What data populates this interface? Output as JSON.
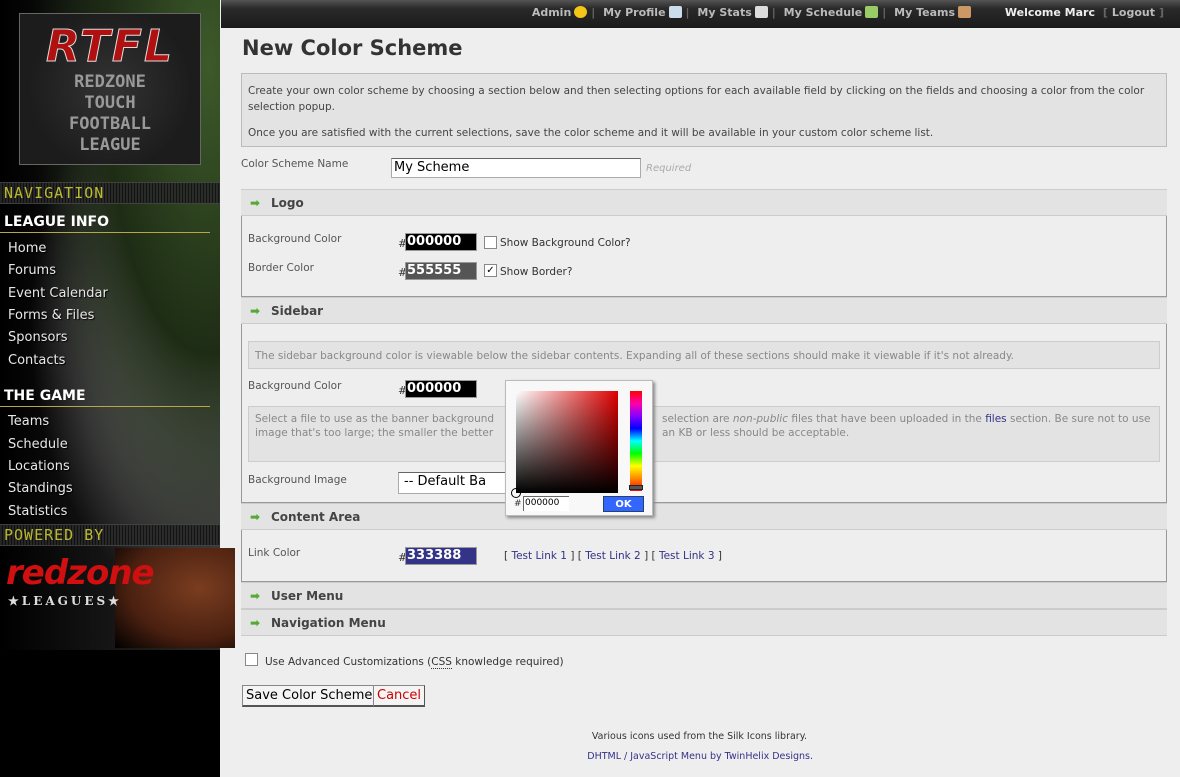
{
  "sidebar": {
    "logo": {
      "abbr": "RTFL",
      "lines": [
        "REDZONE",
        "TOUCH",
        "FOOTBALL",
        "LEAGUE"
      ]
    },
    "nav_banner": "NAVIGATION",
    "sections": [
      {
        "title": "LEAGUE INFO",
        "items": [
          "Home",
          "Forums",
          "Event Calendar",
          "Forms & Files",
          "Sponsors",
          "Contacts"
        ]
      },
      {
        "title": "THE GAME",
        "items": [
          "Teams",
          "Schedule",
          "Locations",
          "Standings",
          "Statistics"
        ]
      }
    ],
    "powered_banner": "POWERED BY",
    "powered_logo": {
      "name": "redzone",
      "tag": "★LEAGUES★"
    }
  },
  "topbar": {
    "links": [
      {
        "label": "Admin",
        "icon": "star-icon"
      },
      {
        "label": "My Profile",
        "icon": "vcard-icon"
      },
      {
        "label": "My Stats",
        "icon": "calculator-icon"
      },
      {
        "label": "My Schedule",
        "icon": "calendar-icon"
      },
      {
        "label": "My Teams",
        "icon": "group-icon"
      }
    ],
    "welcome": "Welcome Marc",
    "logout": "Logout"
  },
  "page": {
    "title": "New Color Scheme",
    "intro": [
      "Create your own color scheme by choosing a section below and then selecting options for each available field by clicking on the fields and choosing a color from the color selection popup.",
      "Once you are satisfied with the current selections, save the color scheme and it will be available in your custom color scheme list."
    ],
    "name_label": "Color Scheme Name",
    "name_value": "My Scheme",
    "required": "Required",
    "logo": {
      "title": "Logo",
      "bg_label": "Background Color",
      "bg_value": "000000",
      "bg_check": "Show Background Color?",
      "bg_checked": false,
      "border_label": "Border Color",
      "border_value": "555555",
      "border_check": "Show Border?",
      "border_checked": true
    },
    "sidebar": {
      "title": "Sidebar",
      "note": "The sidebar background color is viewable below the sidebar contents. Expanding all of these sections should make it viewable if it's not already.",
      "bg_label": "Background Color",
      "bg_value": "000000",
      "file_note_a": "Select a file to use as the banner background",
      "file_note_b": "image that's too large; the smaller the better",
      "file_note_c": "selection are",
      "file_note_em": "non-public",
      "file_note_d": "files that have been uploaded in the",
      "file_note_link": "files",
      "file_note_e": "section. Be sure not to use an",
      "file_note_f": "KB or less should be acceptable.",
      "image_label": "Background Image",
      "image_value": "-- Default Ba"
    },
    "content": {
      "title": "Content Area",
      "link_label": "Link Color",
      "link_value": "333388",
      "test_links": [
        "Test Link 1",
        "Test Link 2",
        "Test Link 3"
      ]
    },
    "user_menu": "User Menu",
    "nav_menu": "Navigation Menu",
    "advanced_a": "Use Advanced Customizations (",
    "advanced_abbr": "CSS",
    "advanced_b": " knowledge required)",
    "save": "Save Color Scheme",
    "cancel": "Cancel",
    "footer": [
      "Various icons used from the Silk Icons library.",
      "DHTML / JavaScript Menu by TwinHelix Designs."
    ]
  },
  "picker": {
    "hex": "000000",
    "ok": "OK",
    "hash": "#"
  },
  "colors": {
    "link": "#333388",
    "cancel": "#cc0000",
    "ok_button": "#3366ff",
    "swatch_border": "#555555"
  }
}
